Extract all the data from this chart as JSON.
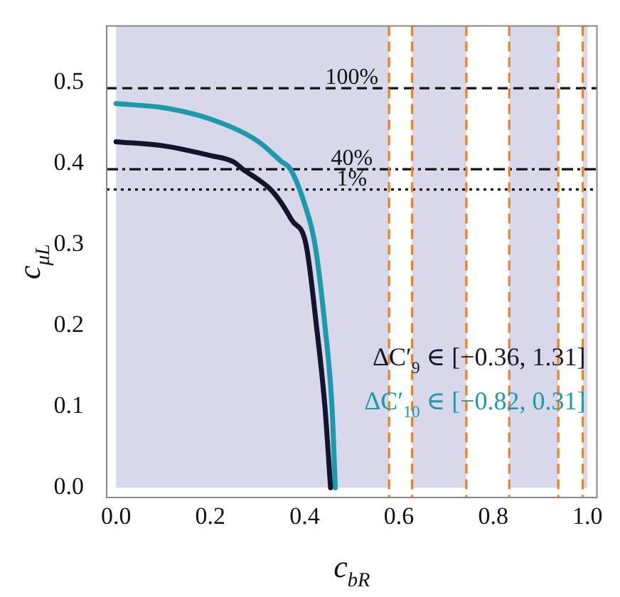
{
  "chart_data": {
    "type": "line",
    "xlabel": "c$_{b}$$_{R}$",
    "ylabel": "c$_{μ}$$_{L}$",
    "xlim": [
      -0.02,
      1.02
    ],
    "ylim": [
      -0.012,
      0.57
    ],
    "xticks": [
      {
        "value": 0,
        "label": "0.0"
      },
      0.2,
      0.4,
      0.6,
      0.8,
      {
        "value": 1,
        "label": "1.0"
      }
    ],
    "yticks": [
      {
        "value": 0,
        "label": "0.0"
      },
      0.1,
      0.2,
      0.3,
      0.4,
      0.5
    ],
    "grid": false,
    "legend": "bottom right",
    "marker": "none",
    "series": [
      {
        "name": "ΔC′$_{9}$ ∈ [−0.36, 1.31]",
        "color": "#14142e",
        "x": [
          0,
          0.1,
          0.2,
          0.25,
          0.269,
          0.3,
          0.328,
          0.35,
          0.373,
          0.403,
          0.425,
          0.443,
          0.455
        ],
        "values": [
          0.427,
          0.422,
          0.41,
          0.402,
          0.393,
          0.381,
          0.368,
          0.352,
          0.33,
          0.3,
          0.2,
          0.1,
          0
        ]
      },
      {
        "name": "ΔC′$_{10}$ ∈ [−0.82, 0.31]",
        "color": "#1a9aaa",
        "x": [
          0,
          0.1,
          0.2,
          0.3,
          0.35,
          0.37,
          0.4,
          0.422,
          0.443,
          0.458,
          0.465
        ],
        "values": [
          0.474,
          0.469,
          0.455,
          0.428,
          0.403,
          0.393,
          0.35,
          0.3,
          0.2,
          0.1,
          0
        ]
      }
    ],
    "annotations": [
      {
        "text": "100%",
        "y": 0.493
      },
      {
        "text": "40%",
        "y": 0.393
      },
      {
        "text": "1%",
        "y": 0.368
      }
    ],
    "ref_lines": [
      {
        "axis": "y",
        "value": 0.493,
        "color": "#111111",
        "line_style": "dashed"
      },
      {
        "axis": "y",
        "value": 0.393,
        "color": "#111111",
        "line_style": "dashdot"
      },
      {
        "axis": "y",
        "value": 0.368,
        "color": "#111111",
        "line_style": "dotted"
      },
      {
        "axis": "x",
        "value": 0.579,
        "color": "#e8822a",
        "line_style": "dashed"
      },
      {
        "axis": "x",
        "value": 0.628,
        "color": "#e8822a",
        "line_style": "dashed"
      },
      {
        "axis": "x",
        "value": 0.743,
        "color": "#e8822a",
        "line_style": "dashed"
      },
      {
        "axis": "x",
        "value": 0.834,
        "color": "#e8822a",
        "line_style": "dashed"
      },
      {
        "axis": "x",
        "value": 0.938,
        "color": "#e8822a",
        "line_style": "dashed"
      },
      {
        "axis": "x",
        "value": 0.99,
        "color": "#e8822a",
        "line_style": "dashed"
      }
    ],
    "bands": [
      {
        "axis": "x",
        "from": 0,
        "to": 0.579,
        "color": "#d8d8ea"
      },
      {
        "axis": "x",
        "from": 0.628,
        "to": 0.743,
        "color": "#d8d8ea"
      },
      {
        "axis": "x",
        "from": 0.834,
        "to": 0.938,
        "color": "#d8d8ea"
      },
      {
        "axis": "x",
        "from": 0.99,
        "to": 1.0,
        "color": "#d8d8ea"
      }
    ]
  }
}
